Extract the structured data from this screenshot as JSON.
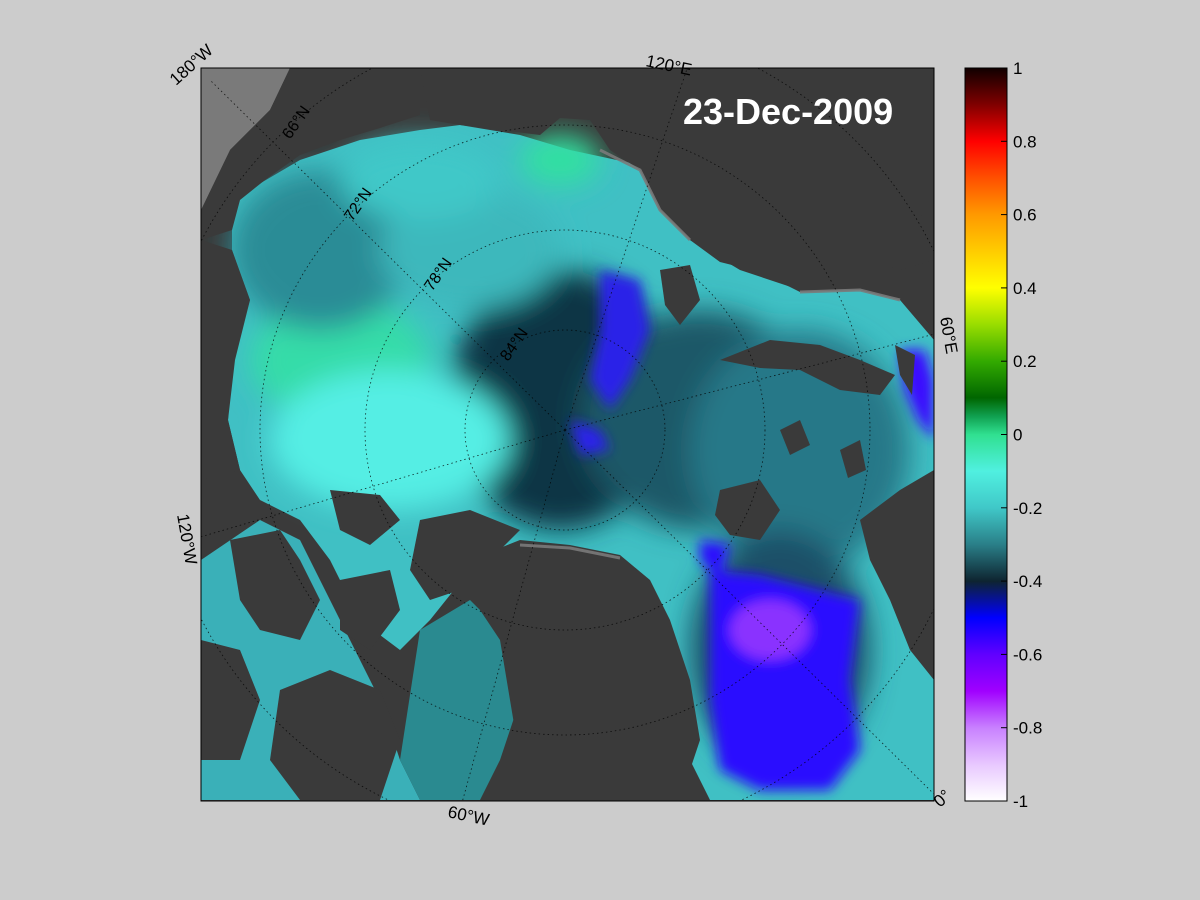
{
  "date_label": "23-Dec-2009",
  "longitude_labels": {
    "lon_180w": "180°W",
    "lon_120e": "120°E",
    "lon_60e": "60°E",
    "lon_120w": "120°W",
    "lon_60w": "60°W",
    "lon_0": "0°"
  },
  "latitude_labels": [
    "66°N",
    "72°N",
    "78°N",
    "84°N"
  ],
  "colorbar": {
    "ticks": [
      "1",
      "0.8",
      "0.6",
      "0.4",
      "0.2",
      "0",
      "-0.2",
      "-0.4",
      "-0.6",
      "-0.8",
      "-1"
    ],
    "min": -1,
    "max": 1,
    "stops": [
      {
        "v": 1.0,
        "c": "#100000"
      },
      {
        "v": 0.9,
        "c": "#800000"
      },
      {
        "v": 0.8,
        "c": "#ff0000"
      },
      {
        "v": 0.7,
        "c": "#ff5000"
      },
      {
        "v": 0.6,
        "c": "#ff9900"
      },
      {
        "v": 0.5,
        "c": "#ffcc00"
      },
      {
        "v": 0.4,
        "c": "#ffff00"
      },
      {
        "v": 0.3,
        "c": "#99dd00"
      },
      {
        "v": 0.2,
        "c": "#33aa00"
      },
      {
        "v": 0.1,
        "c": "#006600"
      },
      {
        "v": 0.05,
        "c": "#10a050"
      },
      {
        "v": 0.0,
        "c": "#30e090"
      },
      {
        "v": -0.1,
        "c": "#50f0e0"
      },
      {
        "v": -0.2,
        "c": "#40c8c8"
      },
      {
        "v": -0.3,
        "c": "#2a7f88"
      },
      {
        "v": -0.4,
        "c": "#0e2430"
      },
      {
        "v": -0.5,
        "c": "#0000ff"
      },
      {
        "v": -0.6,
        "c": "#6000ff"
      },
      {
        "v": -0.7,
        "c": "#a000ff"
      },
      {
        "v": -0.8,
        "c": "#c880ff"
      },
      {
        "v": -0.9,
        "c": "#e8c8ff"
      },
      {
        "v": -1.0,
        "c": "#ffffff"
      }
    ]
  },
  "colors": {
    "page_background": "#cccccc",
    "land": "#3a3a3a",
    "coast_fringe": "#7a7a7a",
    "high_ice": "#50e0d8",
    "mid_ice": "#2e9a9e",
    "low_ice": "#0e3a48",
    "open_water": "#2a10ff",
    "graticule": "#000000"
  }
}
